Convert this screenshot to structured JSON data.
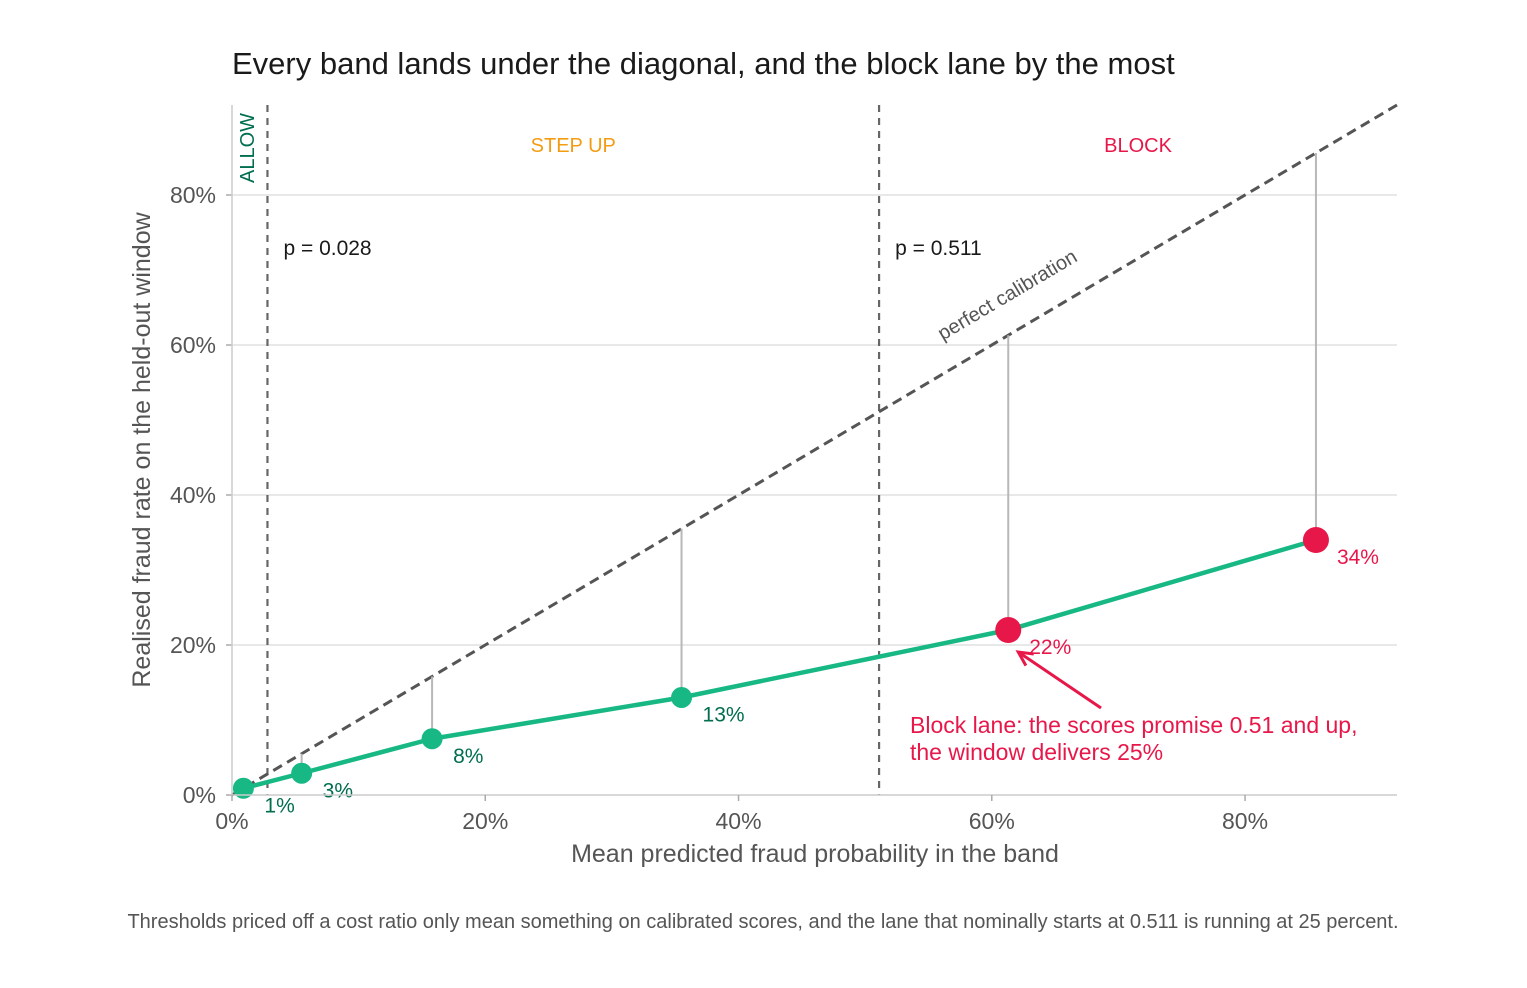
{
  "chart_data": {
    "type": "line",
    "title": "Every band lands under the diagonal, and the block lane by the most",
    "xlabel": "Mean predicted fraud probability in the band",
    "ylabel": "Realised fraud rate on the held-out window",
    "caption": "Thresholds priced off a cost ratio only mean something on calibrated scores, and the lane that nominally starts at 0.511 is running at 25 percent.",
    "xlim": [
      0,
      0.92
    ],
    "ylim": [
      0,
      0.92
    ],
    "x_ticks": [
      0,
      0.2,
      0.4,
      0.6,
      0.8
    ],
    "x_tick_labels": [
      "0%",
      "20%",
      "40%",
      "60%",
      "80%"
    ],
    "y_ticks": [
      0,
      0.2,
      0.4,
      0.6,
      0.8
    ],
    "y_tick_labels": [
      "0%",
      "20%",
      "40%",
      "60%",
      "80%"
    ],
    "grid": "horizontal",
    "diagonal_label": "perfect calibration",
    "thresholds": [
      {
        "value": 0.028,
        "label": "p = 0.028"
      },
      {
        "value": 0.511,
        "label": "p = 0.511"
      }
    ],
    "lanes": [
      {
        "label": "ALLOW",
        "color": "#006e4f"
      },
      {
        "label": "STEP UP",
        "color": "#f39c12"
      },
      {
        "label": "BLOCK",
        "color": "#e8174a"
      }
    ],
    "series": [
      {
        "line_color": "#17b884",
        "points": [
          {
            "x": 0.009,
            "y": 0.009,
            "label": "1%",
            "lane": "allow"
          },
          {
            "x": 0.055,
            "y": 0.029,
            "label": "3%",
            "lane": "step_up"
          },
          {
            "x": 0.158,
            "y": 0.075,
            "label": "8%",
            "lane": "step_up"
          },
          {
            "x": 0.355,
            "y": 0.13,
            "label": "13%",
            "lane": "step_up"
          },
          {
            "x": 0.613,
            "y": 0.22,
            "label": "22%",
            "lane": "block"
          },
          {
            "x": 0.856,
            "y": 0.34,
            "label": "34%",
            "lane": "block"
          }
        ]
      }
    ],
    "annotation": {
      "lines": [
        "Block lane: the scores promise 0.51 and up,",
        "the window delivers 25%"
      ],
      "target_point": 4
    },
    "colors": {
      "allow_point": "#17b884",
      "allow_label": "#006e4f",
      "step_up_point": "#17b884",
      "step_up_label": "#006e4f",
      "block_point": "#e8174a",
      "block_label": "#e8174a",
      "line": "#17b884"
    }
  }
}
